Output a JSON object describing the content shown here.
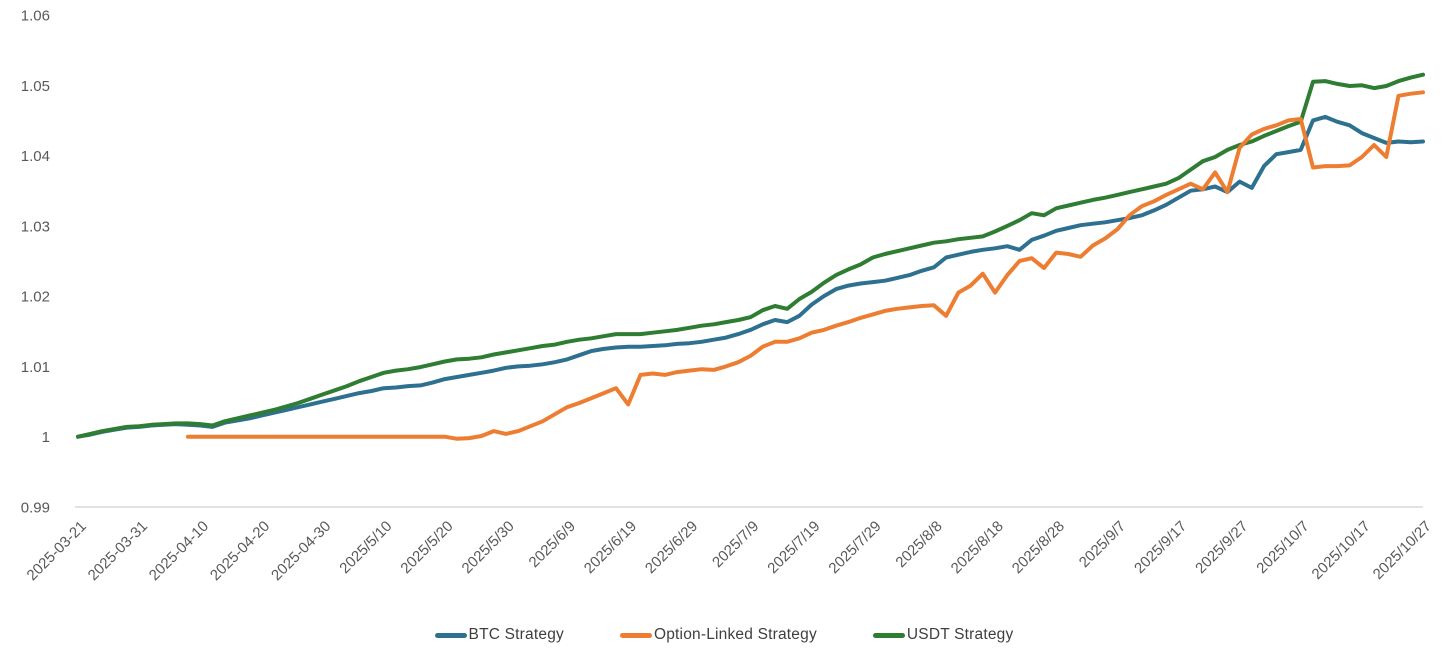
{
  "chart_data": {
    "type": "line",
    "title": "",
    "xlabel": "",
    "ylabel": "",
    "background": "#FFFFFF",
    "ylim": [
      0.99,
      1.06
    ],
    "y_tick_labels": [
      "1.06",
      "1.05",
      "1.04",
      "1.03",
      "1.02",
      "1.01",
      "1",
      "0.99"
    ],
    "grid": "baseline-only",
    "baseline_value": 0.99,
    "baseline_color": "#D9D9D9",
    "axis_text_color": "#595959",
    "legend_text_color": "#3F3F3F",
    "legend_position": "bottom-center",
    "x_start_date": "2025-03-21",
    "x_interval_days": 2,
    "x_tick_every_n_points": 5,
    "x_tick_labels": [
      "2025-03-21",
      "2025-03-31",
      "2025-04-10",
      "2025-04-20",
      "2025-04-30",
      "2025/5/10",
      "2025/5/20",
      "2025/5/30",
      "2025/6/9",
      "2025/6/19",
      "2025/6/29",
      "2025/7/9",
      "2025/7/19",
      "2025/7/29",
      "2025/8/8",
      "2025/8/18",
      "2025/8/28",
      "2025/9/7",
      "2025/9/17",
      "2025/9/27",
      "2025/10/7",
      "2025/10/17",
      "2025/10/27"
    ],
    "series": [
      {
        "name": "BTC Strategy",
        "color": "#2E708F",
        "values": [
          1.0,
          1.0003,
          1.0007,
          1.001,
          1.0013,
          1.0014,
          1.0016,
          1.0017,
          1.0018,
          1.0017,
          1.0016,
          1.0014,
          1.002,
          1.0023,
          1.0026,
          1.003,
          1.0034,
          1.0038,
          1.0042,
          1.0046,
          1.005,
          1.0054,
          1.0058,
          1.0062,
          1.0065,
          1.0069,
          1.007,
          1.0072,
          1.0073,
          1.0077,
          1.0082,
          1.0085,
          1.0088,
          1.0091,
          1.0094,
          1.0098,
          1.01,
          1.0101,
          1.0103,
          1.0106,
          1.011,
          1.0116,
          1.0122,
          1.0125,
          1.0127,
          1.0128,
          1.0128,
          1.0129,
          1.013,
          1.0132,
          1.0133,
          1.0135,
          1.0138,
          1.0141,
          1.0146,
          1.0152,
          1.016,
          1.0166,
          1.0163,
          1.0172,
          1.0188,
          1.02,
          1.021,
          1.0215,
          1.0218,
          1.022,
          1.0222,
          1.0226,
          1.023,
          1.0236,
          1.0241,
          1.0255,
          1.0259,
          1.0263,
          1.0266,
          1.0268,
          1.0271,
          1.0266,
          1.028,
          1.0286,
          1.0293,
          1.0297,
          1.0301,
          1.0303,
          1.0305,
          1.0308,
          1.0311,
          1.0315,
          1.0322,
          1.033,
          1.034,
          1.035,
          1.0352,
          1.0356,
          1.0348,
          1.0363,
          1.0354,
          1.0385,
          1.0402,
          1.0405,
          1.0408,
          1.045,
          1.0455,
          1.0448,
          1.0443,
          1.0432,
          1.0425,
          1.0418,
          1.042,
          1.0419,
          1.042
        ]
      },
      {
        "name": "Option-Linked Strategy",
        "color": "#ED7D31",
        "values": [
          null,
          null,
          null,
          null,
          null,
          null,
          null,
          null,
          null,
          1.0,
          1.0,
          1.0,
          1.0,
          1.0,
          1.0,
          1.0,
          1.0,
          1.0,
          1.0,
          1.0,
          1.0,
          1.0,
          1.0,
          1.0,
          1.0,
          1.0,
          1.0,
          1.0,
          1.0,
          1.0,
          1.0,
          0.9997,
          0.9998,
          1.0001,
          1.0008,
          1.0004,
          1.0008,
          1.0015,
          1.0022,
          1.0032,
          1.0042,
          1.0048,
          1.0055,
          1.0062,
          1.0069,
          1.0046,
          1.0088,
          1.009,
          1.0088,
          1.0092,
          1.0094,
          1.0096,
          1.0095,
          1.01,
          1.0106,
          1.0115,
          1.0128,
          1.0135,
          1.0135,
          1.014,
          1.0148,
          1.0152,
          1.0158,
          1.0163,
          1.0169,
          1.0174,
          1.0179,
          1.0182,
          1.0184,
          1.0186,
          1.0187,
          1.0172,
          1.0205,
          1.0215,
          1.0232,
          1.0205,
          1.023,
          1.025,
          1.0254,
          1.024,
          1.0262,
          1.026,
          1.0256,
          1.0272,
          1.0282,
          1.0295,
          1.0315,
          1.0328,
          1.0335,
          1.0344,
          1.0352,
          1.036,
          1.0352,
          1.0376,
          1.0348,
          1.0411,
          1.043,
          1.0438,
          1.0443,
          1.045,
          1.0452,
          1.0383,
          1.0385,
          1.0385,
          1.0386,
          1.0398,
          1.0415,
          1.0398,
          1.0485,
          1.0488,
          1.049
        ]
      },
      {
        "name": "USDT Strategy",
        "color": "#2E7D32",
        "values": [
          1.0,
          1.0004,
          1.0008,
          1.0011,
          1.0014,
          1.0015,
          1.0017,
          1.0018,
          1.0019,
          1.0019,
          1.0018,
          1.0016,
          1.0022,
          1.0026,
          1.003,
          1.0034,
          1.0038,
          1.0043,
          1.0048,
          1.0054,
          1.006,
          1.0066,
          1.0072,
          1.0079,
          1.0085,
          1.0091,
          1.0094,
          1.0096,
          1.0099,
          1.0103,
          1.0107,
          1.011,
          1.0111,
          1.0113,
          1.0117,
          1.012,
          1.0123,
          1.0126,
          1.0129,
          1.0131,
          1.0135,
          1.0138,
          1.014,
          1.0143,
          1.0146,
          1.0146,
          1.0146,
          1.0148,
          1.015,
          1.0152,
          1.0155,
          1.0158,
          1.016,
          1.0163,
          1.0166,
          1.017,
          1.018,
          1.0186,
          1.0182,
          1.0196,
          1.0206,
          1.0219,
          1.023,
          1.0238,
          1.0245,
          1.0255,
          1.026,
          1.0264,
          1.0268,
          1.0272,
          1.0276,
          1.0278,
          1.0281,
          1.0283,
          1.0285,
          1.0292,
          1.03,
          1.0308,
          1.0318,
          1.0315,
          1.0325,
          1.0329,
          1.0333,
          1.0337,
          1.034,
          1.0344,
          1.0348,
          1.0352,
          1.0356,
          1.036,
          1.0368,
          1.038,
          1.0392,
          1.0398,
          1.0408,
          1.0415,
          1.042,
          1.0428,
          1.0435,
          1.0442,
          1.0448,
          1.0505,
          1.0506,
          1.0502,
          1.0499,
          1.05,
          1.0496,
          1.0499,
          1.0506,
          1.0511,
          1.0515
        ]
      }
    ],
    "draw_order": [
      0,
      2,
      1
    ],
    "line_width": 4
  }
}
